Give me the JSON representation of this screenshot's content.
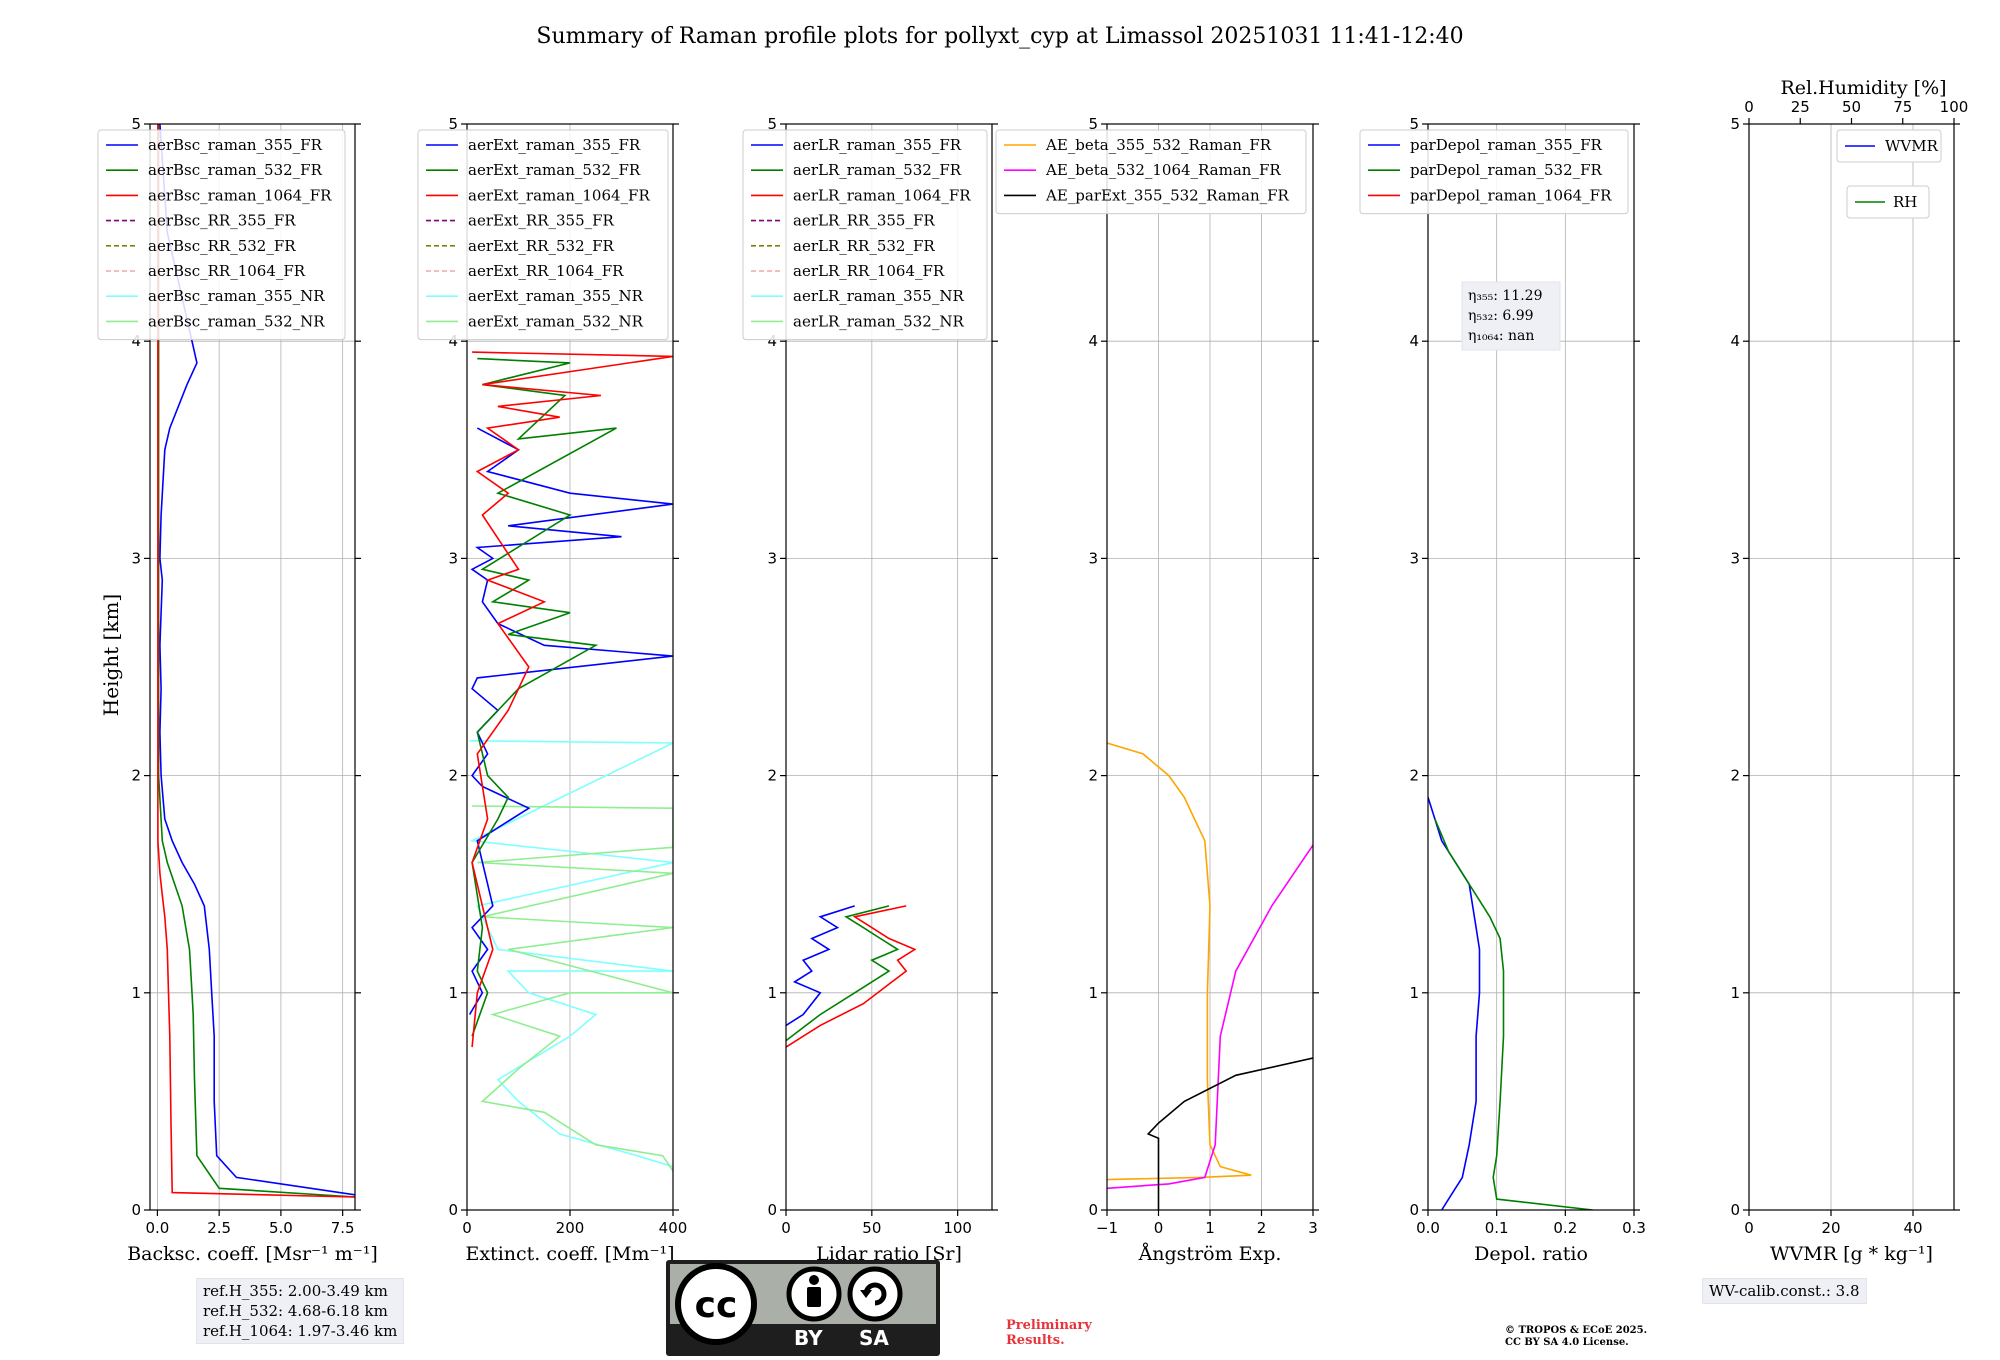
{
  "title": "Summary of Raman profile plots for pollyxt_cyp at Limassol 20251031 11:41-12:40",
  "colors": {
    "blue": "#0000ff",
    "green": "#008000",
    "red": "#ff0000",
    "purple": "#800080",
    "olive": "#808000",
    "salmon": "#f4a6a6",
    "cyan": "#7fffff",
    "lightgreen": "#90ee90",
    "orange": "#ffa500",
    "magenta": "#ff00ff",
    "black": "#000000"
  },
  "ref_heights": [
    "ref.H_355: 2.00-3.49 km",
    "ref.H_532: 4.68-6.18 km",
    "ref.H_1064: 1.97-3.46 km"
  ],
  "wv_calib": "WV-calib.const.: 3.8",
  "preliminary": [
    "Preliminary",
    "Results."
  ],
  "copyright": [
    "© TROPOS & ECoE 2025.",
    "CC BY SA 4.0 License."
  ],
  "license_labels": [
    "cc-icon",
    "by-icon",
    "sa-icon",
    "BY",
    "SA"
  ],
  "chart_data": [
    {
      "type": "line",
      "panel": "backscatter",
      "xlabel": "Backsc. coeff. [Msr⁻¹ m⁻¹]",
      "ylabel": "Height [km]",
      "xlim": [
        -0.3,
        8
      ],
      "ylim": [
        0,
        5
      ],
      "xticks": [
        0,
        2.5,
        5,
        7.5
      ],
      "xticklabels": [
        "0.0",
        "2.5",
        "5.0",
        "7.5"
      ],
      "yticks": [
        0,
        1,
        2,
        3,
        4,
        5
      ],
      "yticklabels": [
        "0",
        "1",
        "2",
        "3",
        "4",
        "5"
      ],
      "legend": [
        "aerBsc_raman_355_FR",
        "aerBsc_raman_532_FR",
        "aerBsc_raman_1064_FR",
        "aerBsc_RR_355_FR",
        "aerBsc_RR_532_FR",
        "aerBsc_RR_1064_FR",
        "aerBsc_raman_355_NR",
        "aerBsc_raman_532_NR"
      ],
      "legend_colors": [
        "blue",
        "green",
        "red",
        "purple",
        "olive",
        "salmon",
        "cyan",
        "lightgreen"
      ],
      "legend_dashed": [
        false,
        false,
        false,
        true,
        true,
        true,
        false,
        false
      ],
      "series": [
        {
          "name": "aerBsc_raman_355_FR",
          "color": "blue",
          "x": [
            8,
            3.2,
            2.4,
            2.3,
            2.3,
            2.2,
            2.1,
            2.0,
            1.9,
            1.5,
            1.0,
            0.6,
            0.3,
            0.15,
            0.1,
            0.15,
            0.1,
            0.2,
            0.1,
            0.15,
            0.3,
            0.5,
            1.2,
            1.6,
            1.4,
            0.4,
            0.1
          ],
          "y": [
            0.07,
            0.15,
            0.25,
            0.5,
            0.8,
            1.0,
            1.2,
            1.3,
            1.4,
            1.5,
            1.6,
            1.7,
            1.8,
            2.0,
            2.2,
            2.4,
            2.6,
            2.9,
            3.0,
            3.2,
            3.5,
            3.6,
            3.8,
            3.9,
            4.0,
            4.5,
            5.0
          ]
        },
        {
          "name": "aerBsc_raman_532_FR",
          "color": "green",
          "x": [
            8,
            2.5,
            1.6,
            1.5,
            1.45,
            1.4,
            1.3,
            1.0,
            0.7,
            0.4,
            0.2,
            0.05,
            0.05
          ],
          "y": [
            0.06,
            0.1,
            0.25,
            0.6,
            0.9,
            1.0,
            1.2,
            1.4,
            1.5,
            1.6,
            1.7,
            2.0,
            5.0
          ]
        },
        {
          "name": "aerBsc_raman_1064_FR",
          "color": "red",
          "x": [
            8,
            0.6,
            0.55,
            0.5,
            0.45,
            0.4,
            0.3,
            0.2,
            0.1,
            0.02,
            0.02
          ],
          "y": [
            0.06,
            0.08,
            0.4,
            0.8,
            1.0,
            1.2,
            1.35,
            1.45,
            1.55,
            1.7,
            5.0
          ]
        }
      ]
    },
    {
      "type": "line",
      "panel": "extinction",
      "xlabel": "Extinct. coeff. [Mm⁻¹]",
      "xlim": [
        0,
        400
      ],
      "ylim": [
        0,
        5
      ],
      "xticks": [
        0,
        200,
        400
      ],
      "xticklabels": [
        "0",
        "200",
        "400"
      ],
      "yticks": [
        0,
        1,
        2,
        3,
        4,
        5
      ],
      "yticklabels": [
        "0",
        "1",
        "2",
        "3",
        "4",
        "5"
      ],
      "legend": [
        "aerExt_raman_355_FR",
        "aerExt_raman_532_FR",
        "aerExt_raman_1064_FR",
        "aerExt_RR_355_FR",
        "aerExt_RR_532_FR",
        "aerExt_RR_1064_FR",
        "aerExt_raman_355_NR",
        "aerExt_raman_532_NR"
      ],
      "legend_colors": [
        "blue",
        "green",
        "red",
        "purple",
        "olive",
        "salmon",
        "cyan",
        "lightgreen"
      ],
      "legend_dashed": [
        false,
        false,
        false,
        true,
        true,
        true,
        false,
        false
      ],
      "series": [
        {
          "name": "aerExt_raman_355_NR",
          "color": "cyan",
          "x": [
            400,
            330,
            180,
            100,
            60,
            200,
            250,
            120,
            80,
            400,
            60,
            40,
            20,
            400,
            10,
            400,
            5
          ],
          "y": [
            0.2,
            0.25,
            0.35,
            0.5,
            0.6,
            0.8,
            0.9,
            1.0,
            1.1,
            1.1,
            1.2,
            1.3,
            1.4,
            1.6,
            1.7,
            2.15,
            2.16
          ]
        },
        {
          "name": "aerExt_raman_532_NR",
          "color": "lightgreen",
          "x": [
            400,
            380,
            250,
            150,
            30,
            100,
            180,
            50,
            200,
            400,
            80,
            400,
            30,
            400,
            20,
            400,
            400,
            10
          ],
          "y": [
            0.18,
            0.25,
            0.3,
            0.45,
            0.5,
            0.65,
            0.8,
            0.9,
            1.0,
            1.0,
            1.2,
            1.3,
            1.35,
            1.55,
            1.6,
            1.67,
            1.85,
            1.86
          ]
        },
        {
          "name": "aerExt_raman_355_FR",
          "color": "blue",
          "x": [
            5,
            30,
            10,
            40,
            10,
            50,
            20,
            120,
            30,
            10,
            40,
            20,
            60,
            10,
            20,
            400,
            150,
            60,
            30,
            40,
            10,
            50,
            20,
            300,
            80,
            400,
            200,
            40,
            100,
            20
          ],
          "y": [
            0.9,
            1.0,
            1.1,
            1.2,
            1.3,
            1.4,
            1.7,
            1.85,
            1.95,
            2.0,
            2.1,
            2.2,
            2.3,
            2.4,
            2.45,
            2.55,
            2.6,
            2.7,
            2.8,
            2.9,
            2.95,
            3.0,
            3.05,
            3.1,
            3.15,
            3.25,
            3.3,
            3.4,
            3.5,
            3.6
          ]
        },
        {
          "name": "aerExt_raman_532_FR",
          "color": "green",
          "x": [
            10,
            40,
            20,
            30,
            10,
            60,
            80,
            40,
            20,
            100,
            250,
            80,
            200,
            50,
            120,
            30,
            200,
            60,
            290,
            100,
            190,
            30,
            200,
            20
          ],
          "y": [
            0.8,
            1.0,
            1.1,
            1.3,
            1.6,
            1.8,
            1.9,
            2.0,
            2.2,
            2.4,
            2.6,
            2.65,
            2.75,
            2.8,
            2.9,
            2.95,
            3.2,
            3.3,
            3.6,
            3.55,
            3.75,
            3.8,
            3.9,
            3.92
          ]
        },
        {
          "name": "aerExt_raman_1064_FR",
          "color": "red",
          "x": [
            10,
            20,
            50,
            30,
            10,
            40,
            20,
            80,
            120,
            60,
            150,
            40,
            100,
            30,
            80,
            20,
            100,
            40,
            180,
            60,
            260,
            30,
            400,
            10
          ],
          "y": [
            0.75,
            1.0,
            1.2,
            1.4,
            1.6,
            1.8,
            2.1,
            2.3,
            2.5,
            2.7,
            2.8,
            2.9,
            2.95,
            3.2,
            3.3,
            3.4,
            3.5,
            3.6,
            3.65,
            3.7,
            3.75,
            3.8,
            3.93,
            3.95
          ]
        }
      ]
    },
    {
      "type": "line",
      "panel": "lidar_ratio",
      "xlabel": "Lidar ratio [Sr]",
      "xlim": [
        0,
        120
      ],
      "ylim": [
        0,
        5
      ],
      "xticks": [
        0,
        50,
        100
      ],
      "xticklabels": [
        "0",
        "50",
        "100"
      ],
      "yticks": [
        0,
        1,
        2,
        3,
        4,
        5
      ],
      "yticklabels": [
        "0",
        "1",
        "2",
        "3",
        "4",
        "5"
      ],
      "legend": [
        "aerLR_raman_355_FR",
        "aerLR_raman_532_FR",
        "aerLR_raman_1064_FR",
        "aerLR_RR_355_FR",
        "aerLR_RR_532_FR",
        "aerLR_RR_1064_FR",
        "aerLR_raman_355_NR",
        "aerLR_raman_532_NR"
      ],
      "legend_colors": [
        "blue",
        "green",
        "red",
        "purple",
        "olive",
        "salmon",
        "cyan",
        "lightgreen"
      ],
      "legend_dashed": [
        false,
        false,
        false,
        true,
        true,
        true,
        false,
        false
      ],
      "series": [
        {
          "name": "aerLR_raman_355_FR",
          "color": "blue",
          "x": [
            0,
            10,
            20,
            5,
            15,
            10,
            25,
            15,
            30,
            20,
            40
          ],
          "y": [
            0.85,
            0.9,
            1.0,
            1.05,
            1.1,
            1.15,
            1.2,
            1.25,
            1.3,
            1.35,
            1.4
          ]
        },
        {
          "name": "aerLR_raman_532_FR",
          "color": "green",
          "x": [
            0,
            20,
            40,
            60,
            50,
            65,
            55,
            45,
            35,
            60
          ],
          "y": [
            0.78,
            0.9,
            1.0,
            1.1,
            1.15,
            1.2,
            1.25,
            1.3,
            1.35,
            1.4
          ]
        },
        {
          "name": "aerLR_raman_1064_FR",
          "color": "red",
          "x": [
            0,
            20,
            45,
            70,
            65,
            75,
            60,
            50,
            40,
            70
          ],
          "y": [
            0.75,
            0.85,
            0.95,
            1.1,
            1.15,
            1.2,
            1.25,
            1.3,
            1.35,
            1.4
          ]
        }
      ]
    },
    {
      "type": "line",
      "panel": "angstrom",
      "xlabel": "Ångström Exp.",
      "xlim": [
        -1,
        3
      ],
      "ylim": [
        0,
        5
      ],
      "xticks": [
        -1,
        0,
        1,
        2,
        3
      ],
      "xticklabels": [
        "−1",
        "0",
        "1",
        "2",
        "3"
      ],
      "yticks": [
        0,
        1,
        2,
        3,
        4,
        5
      ],
      "yticklabels": [
        "0",
        "1",
        "2",
        "3",
        "4",
        "5"
      ],
      "legend": [
        "AE_beta_355_532_Raman_FR",
        "AE_beta_532_1064_Raman_FR",
        "AE_parExt_355_532_Raman_FR"
      ],
      "legend_colors": [
        "orange",
        "magenta",
        "black"
      ],
      "legend_dashed": [
        false,
        false,
        false
      ],
      "series": [
        {
          "name": "AE_beta_355_532_Raman_FR",
          "color": "orange",
          "x": [
            -1,
            0.8,
            1.8,
            1.2,
            1.0,
            0.95,
            0.95,
            1.0,
            0.9,
            0.7,
            0.5,
            0.2,
            -0.3,
            -1
          ],
          "y": [
            0.14,
            0.15,
            0.16,
            0.2,
            0.3,
            0.6,
            1.0,
            1.4,
            1.7,
            1.8,
            1.9,
            2.0,
            2.1,
            2.15
          ]
        },
        {
          "name": "AE_beta_532_1064_Raman_FR",
          "color": "magenta",
          "x": [
            -1,
            0.2,
            0.9,
            1.1,
            1.2,
            1.5,
            2.2,
            3.0
          ],
          "y": [
            0.1,
            0.12,
            0.15,
            0.3,
            0.8,
            1.1,
            1.4,
            1.68
          ]
        },
        {
          "name": "AE_parExt_355_532_Raman_FR",
          "color": "black",
          "x": [
            0,
            0,
            -0.2,
            0,
            0.5,
            1.5,
            3.0
          ],
          "y": [
            0,
            0.33,
            0.35,
            0.4,
            0.5,
            0.62,
            0.7
          ]
        }
      ]
    },
    {
      "type": "line",
      "panel": "depolarization",
      "xlabel": "Depol. ratio",
      "xlim": [
        0,
        0.3
      ],
      "ylim": [
        0,
        5
      ],
      "xticks": [
        0,
        0.1,
        0.2,
        0.3
      ],
      "xticklabels": [
        "0.0",
        "0.1",
        "0.2",
        "0.3"
      ],
      "yticks": [
        0,
        1,
        2,
        3,
        4,
        5
      ],
      "yticklabels": [
        "0",
        "1",
        "2",
        "3",
        "4",
        "5"
      ],
      "legend": [
        "parDepol_raman_355_FR",
        "parDepol_raman_532_FR",
        "parDepol_raman_1064_FR"
      ],
      "legend_colors": [
        "blue",
        "green",
        "red"
      ],
      "legend_dashed": [
        false,
        false,
        false
      ],
      "annotation": [
        "η₃₅₅: 11.29",
        "η₅₃₂: 6.99",
        "η₁₀₆₄: nan"
      ],
      "series": [
        {
          "name": "parDepol_raman_355_FR",
          "color": "blue",
          "x": [
            0.02,
            0.03,
            0.05,
            0.06,
            0.07,
            0.07,
            0.075,
            0.075,
            0.07,
            0.06,
            0.04,
            0.02,
            0.01,
            0.0
          ],
          "y": [
            0.0,
            0.05,
            0.15,
            0.3,
            0.5,
            0.8,
            1.0,
            1.2,
            1.3,
            1.5,
            1.6,
            1.7,
            1.8,
            1.9
          ]
        },
        {
          "name": "parDepol_raman_532_FR",
          "color": "green",
          "x": [
            0.24,
            0.1,
            0.095,
            0.1,
            0.105,
            0.11,
            0.11,
            0.105,
            0.09,
            0.07,
            0.05,
            0.03,
            0.01
          ],
          "y": [
            0.0,
            0.05,
            0.15,
            0.25,
            0.5,
            0.8,
            1.1,
            1.25,
            1.35,
            1.45,
            1.55,
            1.65,
            1.8
          ]
        }
      ]
    },
    {
      "type": "line",
      "panel": "wvmr",
      "xlabel": "WVMR [g * kg⁻¹]",
      "toplabel": "Rel.Humidity [%]",
      "xlim": [
        0,
        50
      ],
      "ylim": [
        0,
        5
      ],
      "top_xlim": [
        0,
        100
      ],
      "xticks": [
        0,
        20,
        40
      ],
      "xticklabels": [
        "0",
        "20",
        "40"
      ],
      "top_xticks": [
        0,
        25,
        50,
        75,
        100
      ],
      "top_xticklabels": [
        "0",
        "25",
        "50",
        "75",
        "100"
      ],
      "yticks": [
        0,
        1,
        2,
        3,
        4,
        5
      ],
      "yticklabels": [
        "0",
        "1",
        "2",
        "3",
        "4",
        "5"
      ],
      "legend": [
        "WVMR"
      ],
      "legend2": [
        "RH"
      ],
      "series": []
    }
  ]
}
